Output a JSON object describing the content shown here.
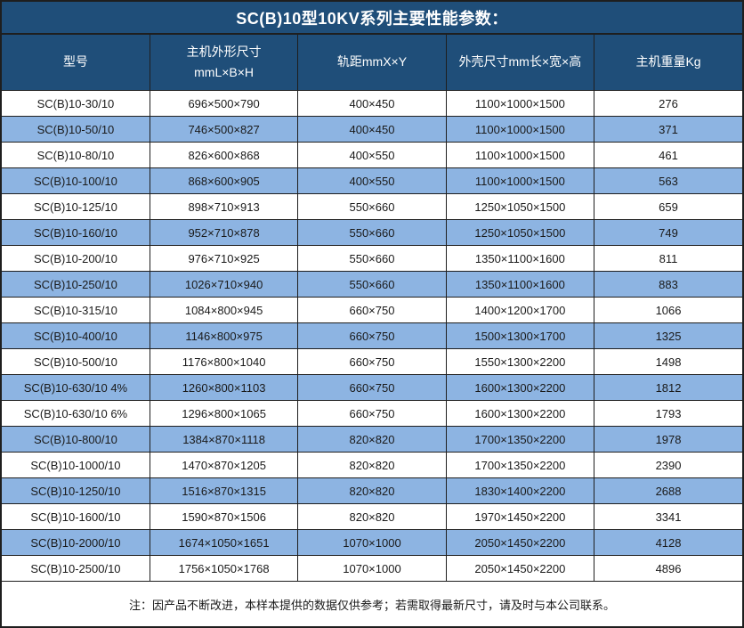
{
  "title": "SC(B)10型10KV系列主要性能参数：",
  "colors": {
    "header_bg": "#1F4E79",
    "stripe_bg": "#8DB4E2",
    "row_bg": "#FFFFFF",
    "border": "#1E1E1E",
    "header_text": "#FFFFFF",
    "body_text": "#1A1A1A"
  },
  "table": {
    "headers": [
      "型号",
      "主机外形尺寸\nmmL×B×H",
      "轨距mmX×Y",
      "外壳尺寸mm长×宽×高",
      "主机重量Kg"
    ],
    "rows": [
      [
        "SC(B)10-30/10",
        "696×500×790",
        "400×450",
        "1100×1000×1500",
        "276"
      ],
      [
        "SC(B)10-50/10",
        "746×500×827",
        "400×450",
        "1100×1000×1500",
        "371"
      ],
      [
        "SC(B)10-80/10",
        "826×600×868",
        "400×550",
        "1100×1000×1500",
        "461"
      ],
      [
        "SC(B)10-100/10",
        "868×600×905",
        "400×550",
        "1100×1000×1500",
        "563"
      ],
      [
        "SC(B)10-125/10",
        "898×710×913",
        "550×660",
        "1250×1050×1500",
        "659"
      ],
      [
        "SC(B)10-160/10",
        "952×710×878",
        "550×660",
        "1250×1050×1500",
        "749"
      ],
      [
        "SC(B)10-200/10",
        "976×710×925",
        "550×660",
        "1350×1100×1600",
        "811"
      ],
      [
        "SC(B)10-250/10",
        "1026×710×940",
        "550×660",
        "1350×1100×1600",
        "883"
      ],
      [
        "SC(B)10-315/10",
        "1084×800×945",
        "660×750",
        "1400×1200×1700",
        "1066"
      ],
      [
        "SC(B)10-400/10",
        "1146×800×975",
        "660×750",
        "1500×1300×1700",
        "1325"
      ],
      [
        "SC(B)10-500/10",
        "1176×800×1040",
        "660×750",
        "1550×1300×2200",
        "1498"
      ],
      [
        "SC(B)10-630/10 4%",
        "1260×800×1103",
        "660×750",
        "1600×1300×2200",
        "1812"
      ],
      [
        "SC(B)10-630/10 6%",
        "1296×800×1065",
        "660×750",
        "1600×1300×2200",
        "1793"
      ],
      [
        "SC(B)10-800/10",
        "1384×870×1118",
        "820×820",
        "1700×1350×2200",
        "1978"
      ],
      [
        "SC(B)10-1000/10",
        "1470×870×1205",
        "820×820",
        "1700×1350×2200",
        "2390"
      ],
      [
        "SC(B)10-1250/10",
        "1516×870×1315",
        "820×820",
        "1830×1400×2200",
        "2688"
      ],
      [
        "SC(B)10-1600/10",
        "1590×870×1506",
        "820×820",
        "1970×1450×2200",
        "3341"
      ],
      [
        "SC(B)10-2000/10",
        "1674×1050×1651",
        "1070×1000",
        "2050×1450×2200",
        "4128"
      ],
      [
        "SC(B)10-2500/10",
        "1756×1050×1768",
        "1070×1000",
        "2050×1450×2200",
        "4896"
      ]
    ],
    "note": "注：因产品不断改进，本样本提供的数据仅供参考；若需取得最新尺寸，请及时与本公司联系。"
  }
}
